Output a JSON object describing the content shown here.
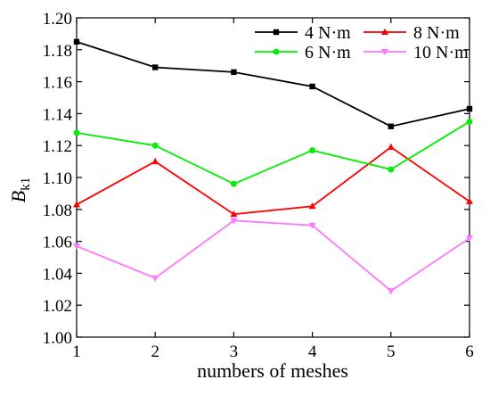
{
  "chart_data": {
    "type": "line",
    "title": "",
    "xlabel": "numbers of meshes",
    "ylabel": {
      "main": "B",
      "sub": "k1"
    },
    "x": [
      1,
      2,
      3,
      4,
      5,
      6
    ],
    "xlim": [
      1,
      6
    ],
    "ylim": [
      1.0,
      1.2
    ],
    "x_ticks": [
      "1",
      "2",
      "3",
      "4",
      "5",
      "6"
    ],
    "y_ticks": [
      "1.00",
      "1.02",
      "1.04",
      "1.06",
      "1.08",
      "1.10",
      "1.12",
      "1.14",
      "1.16",
      "1.18",
      "1.20"
    ],
    "grid": false,
    "legend_placement": "top-right",
    "series": [
      {
        "name": "4 N·m",
        "color": "#000000",
        "marker": "square",
        "values": [
          1.185,
          1.169,
          1.166,
          1.157,
          1.132,
          1.143
        ]
      },
      {
        "name": "8 N·m",
        "color": "#ff0000",
        "marker": "triangle-up",
        "values": [
          1.083,
          1.11,
          1.077,
          1.082,
          1.119,
          1.085
        ]
      },
      {
        "name": "6 N·m",
        "color": "#00ee00",
        "marker": "circle",
        "values": [
          1.128,
          1.12,
          1.096,
          1.117,
          1.105,
          1.135
        ]
      },
      {
        "name": "10 N·m",
        "color": "#ff77ff",
        "marker": "triangle-down",
        "values": [
          1.057,
          1.037,
          1.073,
          1.07,
          1.029,
          1.062
        ]
      }
    ]
  }
}
